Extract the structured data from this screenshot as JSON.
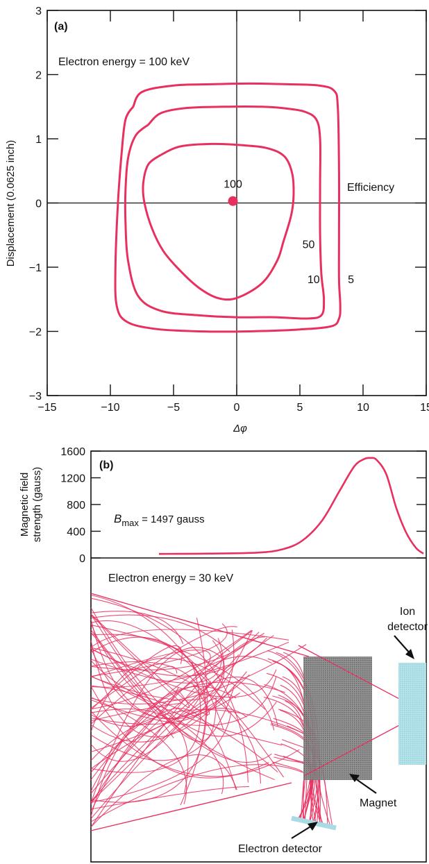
{
  "chart_data": [
    {
      "type": "line",
      "panel_label": "(a)",
      "annotation": "Electron energy = 100 keV",
      "xlabel": "Δφ",
      "ylabel": "Displacement (0.0625 inch)",
      "xlim": [
        -15,
        15
      ],
      "ylim": [
        -3,
        3
      ],
      "xticks": [
        -15,
        -10,
        -5,
        0,
        5,
        10,
        15
      ],
      "yticks": [
        -3,
        -2,
        -1,
        0,
        1,
        2,
        3
      ],
      "xtick_labels": [
        "−15",
        "−10",
        "−5",
        "0",
        "5",
        "10",
        "15"
      ],
      "ytick_labels": [
        "−3",
        "−2",
        "−1",
        "0",
        "1",
        "2",
        "3"
      ],
      "efficiency_label": "Efficiency",
      "center_point": {
        "x": -0.3,
        "y": 0.03,
        "label": "100"
      },
      "series": [
        {
          "name": "5",
          "label_at": [
            8.8,
            -1.25
          ],
          "points": [
            [
              -8.2,
              1.5
            ],
            [
              -7.5,
              1.73
            ],
            [
              -5,
              1.83
            ],
            [
              -2,
              1.85
            ],
            [
              1,
              1.86
            ],
            [
              4,
              1.85
            ],
            [
              6.5,
              1.83
            ],
            [
              7.7,
              1.75
            ],
            [
              8,
              1.5
            ],
            [
              8.1,
              0.5
            ],
            [
              8.1,
              -0.5
            ],
            [
              8.1,
              -1.2
            ],
            [
              8.2,
              -1.6
            ],
            [
              8.1,
              -1.8
            ],
            [
              7.5,
              -1.92
            ],
            [
              5,
              -1.97
            ],
            [
              1,
              -2.0
            ],
            [
              -3,
              -2.0
            ],
            [
              -6.5,
              -1.96
            ],
            [
              -8.7,
              -1.85
            ],
            [
              -9.5,
              -1.6
            ],
            [
              -9.6,
              -1.0
            ],
            [
              -9.4,
              0
            ],
            [
              -9.1,
              0.8
            ],
            [
              -8.8,
              1.3
            ],
            [
              -8.2,
              1.5
            ]
          ]
        },
        {
          "name": "10",
          "label_at": [
            5.6,
            -1.25
          ],
          "points": [
            [
              -7,
              1.22
            ],
            [
              -6,
              1.4
            ],
            [
              -4,
              1.48
            ],
            [
              -1,
              1.5
            ],
            [
              2,
              1.5
            ],
            [
              4,
              1.47
            ],
            [
              5.4,
              1.42
            ],
            [
              6.3,
              1.3
            ],
            [
              6.6,
              1.0
            ],
            [
              6.6,
              0.3
            ],
            [
              6.6,
              -0.5
            ],
            [
              6.7,
              -1.1
            ],
            [
              6.9,
              -1.5
            ],
            [
              6.7,
              -1.75
            ],
            [
              5.5,
              -1.8
            ],
            [
              3,
              -1.78
            ],
            [
              0,
              -1.78
            ],
            [
              -3,
              -1.75
            ],
            [
              -6,
              -1.68
            ],
            [
              -7.8,
              -1.45
            ],
            [
              -8.6,
              -0.9
            ],
            [
              -8.8,
              -0.3
            ],
            [
              -8.8,
              0.2
            ],
            [
              -8.6,
              0.7
            ],
            [
              -8,
              1.05
            ],
            [
              -7,
              1.22
            ]
          ]
        },
        {
          "name": "50",
          "label_at": [
            5.2,
            -0.7
          ],
          "points": [
            [
              -6,
              0.75
            ],
            [
              -4.5,
              0.88
            ],
            [
              -2,
              0.92
            ],
            [
              0.5,
              0.9
            ],
            [
              2.5,
              0.85
            ],
            [
              3.8,
              0.72
            ],
            [
              4.4,
              0.45
            ],
            [
              4.5,
              0.1
            ],
            [
              4.3,
              -0.2
            ],
            [
              3.7,
              -0.6
            ],
            [
              3.2,
              -0.9
            ],
            [
              2,
              -1.25
            ],
            [
              0,
              -1.48
            ],
            [
              -1.5,
              -1.48
            ],
            [
              -3,
              -1.32
            ],
            [
              -4.5,
              -1.05
            ],
            [
              -5.8,
              -0.75
            ],
            [
              -6.7,
              -0.4
            ],
            [
              -7.3,
              0
            ],
            [
              -7.4,
              0.3
            ],
            [
              -7,
              0.6
            ],
            [
              -6,
              0.75
            ]
          ]
        }
      ]
    },
    {
      "type": "line",
      "panel_label": "(b)",
      "ylabel": "Magnetic field strength (gauss)",
      "ylabel_lines": [
        "Magnetic field",
        "strength (gauss)"
      ],
      "ylim": [
        0,
        1600
      ],
      "yticks": [
        0,
        400,
        800,
        1200,
        1600
      ],
      "ytick_labels": [
        "0",
        "400",
        "800",
        "1200",
        "1600"
      ],
      "annotation_b": "B",
      "annotation_sub": "max",
      "annotation_rest": " = 1497 gauss",
      "series": [
        {
          "name": "",
          "points": [
            [
              0.0,
              60
            ],
            [
              0.2,
              65
            ],
            [
              0.4,
              80
            ],
            [
              0.5,
              130
            ],
            [
              0.58,
              260
            ],
            [
              0.66,
              560
            ],
            [
              0.73,
              1000
            ],
            [
              0.79,
              1370
            ],
            [
              0.83,
              1480
            ],
            [
              0.855,
              1497
            ],
            [
              0.88,
              1470
            ],
            [
              0.92,
              1250
            ],
            [
              0.96,
              750
            ],
            [
              1.0,
              380
            ],
            [
              1.04,
              150
            ],
            [
              1.07,
              65
            ]
          ]
        }
      ]
    }
  ],
  "diagram": {
    "energy_label": "Electron energy = 30 keV",
    "ion_detector_label_line1": "Ion",
    "ion_detector_label_line2": "detector",
    "magnet_label": "Magnet",
    "electron_detector_label": "Electron detector",
    "colors": {
      "trajectory": "#e8305f",
      "magnet": "#6f6f6f",
      "detector": "#a8dce4",
      "curve": "#e8305f"
    }
  }
}
